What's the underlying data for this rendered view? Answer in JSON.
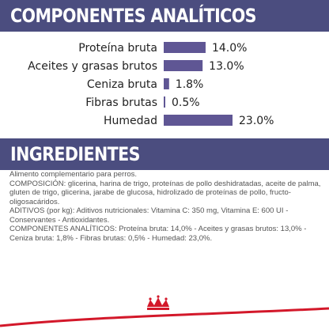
{
  "components": {
    "title": "COMPONENTES ANALÍTICOS"
  },
  "chart_data": {
    "type": "bar",
    "orientation": "horizontal",
    "categories": [
      "Proteína bruta",
      "Aceites y grasas brutos",
      "Ceniza bruta",
      "Fibras brutas",
      "Humedad"
    ],
    "values": [
      14.0,
      13.0,
      1.8,
      0.5,
      23.0
    ],
    "value_labels": [
      "14.0%",
      "13.0%",
      "1.8%",
      "0.5%",
      "23.0%"
    ],
    "unit": "%",
    "bar_color": "#5f5694",
    "xlim": [
      0,
      23.0
    ],
    "grid": false,
    "legend": "none"
  },
  "ingredients": {
    "title": "INGREDIENTES",
    "lines": [
      "Alimento complementario para perros.",
      "COMPOSICIÓN: glicerina, harina de trigo, proteínas de pollo deshidratadas, aceite de palma, gluten de trigo, glicerina, jarabe de glucosa, hidrolizado de proteínas de pollo, fructo-oligosacáridos.",
      "ADITIVOS (por kg): Aditivos nutricionales: Vitamina C: 350 mg, Vitamina E: 600 UI - Conservantes - Antioxidantes.",
      "COMPONENTES ANALÍTICOS: Proteína bruta: 14,0% - Aceites y grasas brutos: 13,0% - Ceniza bruta: 1,8% - Fibras brutas: 0,5% - Humedad: 23,0%."
    ]
  },
  "colors": {
    "band": "#4b4d7f",
    "logo_red": "#d3182a",
    "text": "#555555"
  }
}
